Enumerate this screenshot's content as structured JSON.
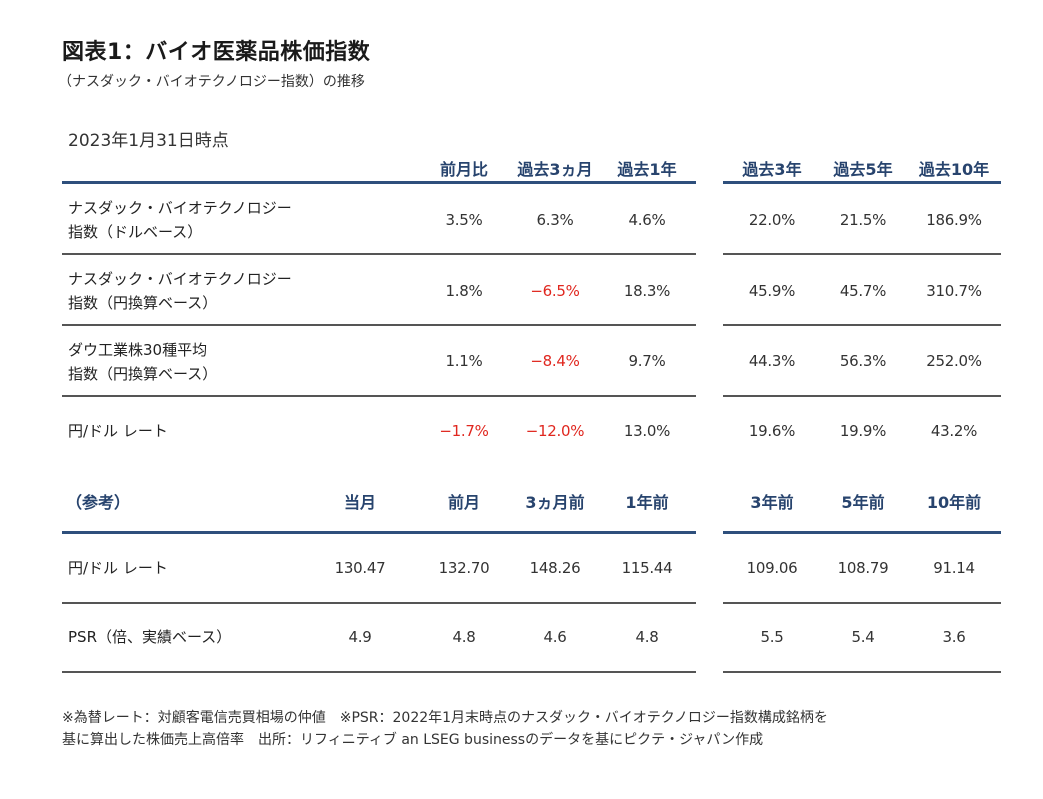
{
  "title": "図表1：バイオ医薬品株価指数",
  "subtitle": "（ナスダック・バイオテクノロジー指数）の推移",
  "as_of": "2023年1月31日時点",
  "performance": {
    "headers": [
      "前月比",
      "過去3ヵ月",
      "過去1年",
      "過去3年",
      "過去5年",
      "過去10年"
    ],
    "rows": [
      {
        "label1": "ナスダック・バイオテクノロジー",
        "label2": "指数（ドルベース）",
        "values": [
          "3.5%",
          "6.3%",
          "4.6%",
          "22.0%",
          "21.5%",
          "186.9%"
        ]
      },
      {
        "label1": "ナスダック・バイオテクノロジー",
        "label2": "指数（円換算ベース）",
        "values": [
          "1.8%",
          "−6.5%",
          "18.3%",
          "45.9%",
          "45.7%",
          "310.7%"
        ]
      },
      {
        "label1": "ダウ工業株30種平均",
        "label2": "指数（円換算ベース）",
        "values": [
          "1.1%",
          "−8.4%",
          "9.7%",
          "44.3%",
          "56.3%",
          "252.0%"
        ]
      },
      {
        "label1": "円/ドル レート",
        "label2": "",
        "values": [
          "−1.7%",
          "−12.0%",
          "13.0%",
          "19.6%",
          "19.9%",
          "43.2%"
        ]
      }
    ]
  },
  "reference": {
    "label": "（参考）",
    "headers": [
      "当月",
      "前月",
      "3ヵ月前",
      "1年前",
      "3年前",
      "5年前",
      "10年前"
    ],
    "rows": [
      {
        "label": "円/ドル レート",
        "values": [
          "130.47",
          "132.70",
          "148.26",
          "115.44",
          "109.06",
          "108.79",
          "91.14"
        ]
      },
      {
        "label": "PSR（倍、実績ベース）",
        "values": [
          "4.9",
          "4.8",
          "4.6",
          "4.8",
          "5.5",
          "5.4",
          "3.6"
        ]
      }
    ]
  },
  "notes": [
    "※為替レート：対顧客電信売買相場の仲値　※PSR：2022年1月末時点のナスダック・バイオテクノロジー指数構成銘柄を",
    "基に算出した株価売上高倍率　出所：リフィニティブ an LSEG businessのデータを基にピクテ・ジャパン作成"
  ],
  "colors": {
    "header_text": "#28446e",
    "header_rule": "#2e4f7c",
    "negative": "#e0271f"
  }
}
